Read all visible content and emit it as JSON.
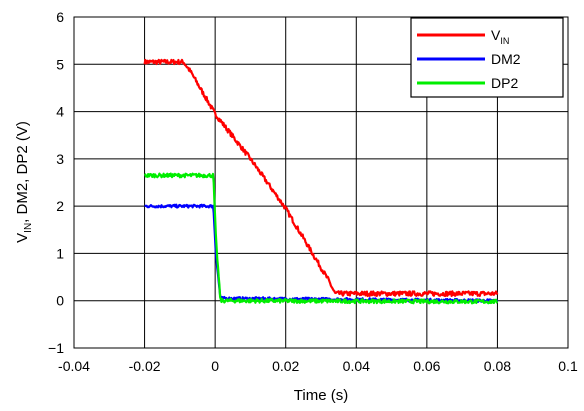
{
  "chart_data": {
    "type": "line",
    "title": "",
    "xlabel": "Time (s)",
    "ylabel": {
      "main": "V",
      "sub": "IN",
      "rest": ", DM2, DP2 (V)"
    },
    "xlim": [
      -0.04,
      0.1
    ],
    "ylim": [
      -1,
      6
    ],
    "xticks": [
      "-0.04",
      "-0.02",
      "0",
      "0.02",
      "0.04",
      "0.06",
      "0.08",
      "0.1"
    ],
    "yticks": [
      "−1",
      "0",
      "1",
      "2",
      "3",
      "4",
      "5",
      "6"
    ],
    "grid": true,
    "legend_position": "top-right",
    "series": [
      {
        "name": "V",
        "name_sub": "IN",
        "color": "#ff0000",
        "noise": 0.05,
        "x": [
          -0.02,
          -0.009,
          -0.007,
          0.0,
          0.01,
          0.02,
          0.026,
          0.032,
          0.034,
          0.08
        ],
        "y": [
          5.05,
          5.05,
          4.85,
          3.95,
          3.0,
          1.95,
          1.2,
          0.45,
          0.15,
          0.15
        ]
      },
      {
        "name": "DM2",
        "color": "#0000ff",
        "noise": 0.03,
        "x": [
          -0.02,
          -0.0005,
          0.0003,
          0.0015,
          0.08
        ],
        "y": [
          2.0,
          2.0,
          0.9,
          0.05,
          0.0
        ]
      },
      {
        "name": "DP2",
        "color": "#00ee00",
        "noise": 0.04,
        "x": [
          -0.02,
          -0.0005,
          0.0003,
          0.0015,
          0.08
        ],
        "y": [
          2.65,
          2.65,
          1.2,
          0.0,
          -0.02
        ]
      }
    ]
  }
}
